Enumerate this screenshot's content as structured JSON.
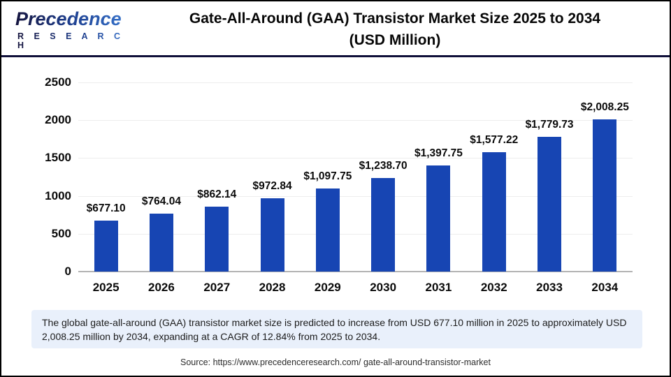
{
  "header": {
    "logo": {
      "brand": "Precedence",
      "sub": "R E S E A R C H"
    },
    "title_line1": "Gate-All-Around (GAA) Transistor Market Size 2025 to 2034",
    "title_line2": "(USD Million)"
  },
  "chart_data": {
    "type": "bar",
    "title": "Gate-All-Around (GAA) Transistor Market Size 2025 to 2034 (USD Million)",
    "categories": [
      "2025",
      "2026",
      "2027",
      "2028",
      "2029",
      "2030",
      "2031",
      "2032",
      "2033",
      "2034"
    ],
    "values": [
      677.1,
      764.04,
      862.14,
      972.84,
      1097.75,
      1238.7,
      1397.75,
      1577.22,
      1779.73,
      2008.25
    ],
    "value_labels": [
      "$677.10",
      "$764.04",
      "$862.14",
      "$972.84",
      "$1,097.75",
      "$1,238.70",
      "$1,397.75",
      "$1,577.22",
      "$1,779.73",
      "$2,008.25"
    ],
    "xlabel": "",
    "ylabel": "",
    "ylim": [
      0,
      2500
    ],
    "yticks": [
      0,
      500,
      1000,
      1500,
      2000,
      2500
    ],
    "grid": true,
    "legend": false,
    "bar_color": "#1745b3",
    "grid_color": "#ededed",
    "axis_line_color": "#b3b3b3"
  },
  "footnote": {
    "text": "The global gate-all-around (GAA) transistor market size is predicted to increase from USD 677.10 million in 2025 to approximately USD 2,008.25 million by 2034, expanding at a CAGR of 12.84% from 2025 to 2034."
  },
  "source": {
    "text": "Source: https://www.precedenceresearch.com/ gate-all-around-transistor-market"
  }
}
